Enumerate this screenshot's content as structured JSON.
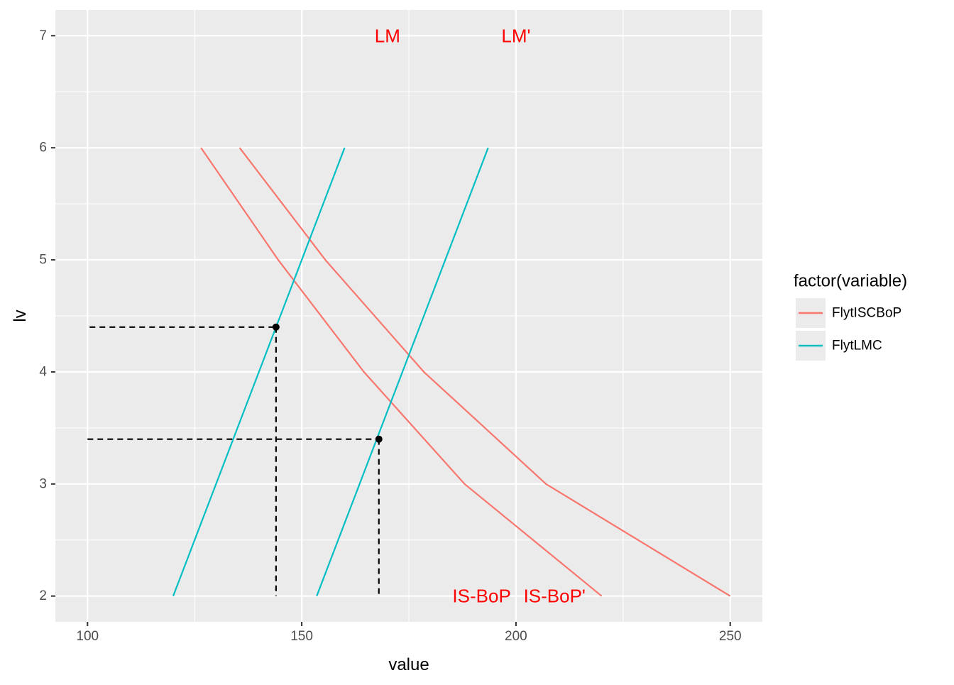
{
  "chart_data": {
    "type": "line",
    "title": "",
    "xlabel": "value",
    "ylabel": "lv",
    "xlim": [
      92.5,
      257.5
    ],
    "ylim": [
      1.77,
      7.23
    ],
    "x_ticks": [
      100,
      150,
      200,
      250
    ],
    "y_ticks": [
      2,
      3,
      4,
      5,
      6,
      7
    ],
    "x_tick_labels": [
      "100",
      "150",
      "200",
      "250"
    ],
    "y_tick_labels": [
      "2",
      "3",
      "4",
      "5",
      "6",
      "7"
    ],
    "grid": true,
    "legend": {
      "title": "factor(variable)",
      "placement": "right",
      "entries": [
        {
          "name": "FlytISCBoP",
          "color": "#F8766D"
        },
        {
          "name": "FlytLMC",
          "color": "#00BFC4"
        }
      ]
    },
    "series": [
      {
        "name": "FlytISCBoP",
        "color": "#F8766D",
        "points": [
          [
            126.5,
            6
          ],
          [
            144.5,
            5
          ],
          [
            164.5,
            4
          ],
          [
            188,
            3
          ],
          [
            220,
            2
          ]
        ]
      },
      {
        "name": "FlytISCBoP",
        "color": "#F8766D",
        "points": [
          [
            135.5,
            6
          ],
          [
            155.5,
            5
          ],
          [
            178.5,
            4
          ],
          [
            207,
            3
          ],
          [
            250,
            2
          ]
        ]
      },
      {
        "name": "FlytLMC",
        "color": "#00BFC4",
        "points": [
          [
            120,
            2
          ],
          [
            160,
            6
          ]
        ]
      },
      {
        "name": "FlytLMC",
        "color": "#00BFC4",
        "points": [
          [
            153.5,
            2
          ],
          [
            193.5,
            6
          ]
        ]
      }
    ],
    "equilibrium_points": [
      {
        "x": 144,
        "y": 4.4
      },
      {
        "x": 168,
        "y": 3.4
      }
    ],
    "guide_lines": [
      {
        "from": [
          100.5,
          4.4
        ],
        "to": [
          144,
          4.4
        ]
      },
      {
        "from": [
          144,
          4.4
        ],
        "to": [
          144,
          2
        ]
      },
      {
        "from": [
          100,
          3.4
        ],
        "to": [
          168,
          3.4
        ]
      },
      {
        "from": [
          168,
          3.4
        ],
        "to": [
          168,
          2
        ]
      }
    ],
    "annotations": [
      {
        "text": "LM",
        "x": 170,
        "y": 7,
        "color": "#FF0000"
      },
      {
        "text": "LM'",
        "x": 200,
        "y": 7,
        "color": "#FF0000"
      },
      {
        "text": "IS-BoP",
        "x": 192,
        "y": 2,
        "color": "#FF0000"
      },
      {
        "text": "IS-BoP'",
        "x": 209,
        "y": 2,
        "color": "#FF0000"
      }
    ]
  }
}
